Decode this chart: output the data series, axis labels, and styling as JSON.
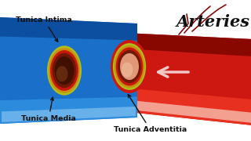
{
  "bg_color": "#ffffff",
  "title": "Arteries",
  "labels": {
    "adventitia": "Tunica Adventitia",
    "media": "Tunica Media",
    "intima": "Tunica Intima"
  },
  "colors": {
    "blue_outer": "#1a70c8",
    "blue_mid": "#3090e0",
    "blue_light": "#60b8f8",
    "blue_dark": "#0a4898",
    "blue_vdark": "#083070",
    "red_outer": "#cc1810",
    "red_mid": "#e83020",
    "red_dark": "#880800",
    "red_vdark": "#660000",
    "red_light": "#f06050",
    "yellow_green": "#b8c020",
    "gold": "#c89010",
    "gold_light": "#e0b830",
    "brown_dark": "#401000",
    "brown_mid": "#602010",
    "flesh": "#e09878",
    "flesh_light": "#f0c0a0",
    "white": "#ffffff",
    "text_dark": "#111111"
  },
  "figsize": [
    3.2,
    1.8
  ],
  "dpi": 100
}
